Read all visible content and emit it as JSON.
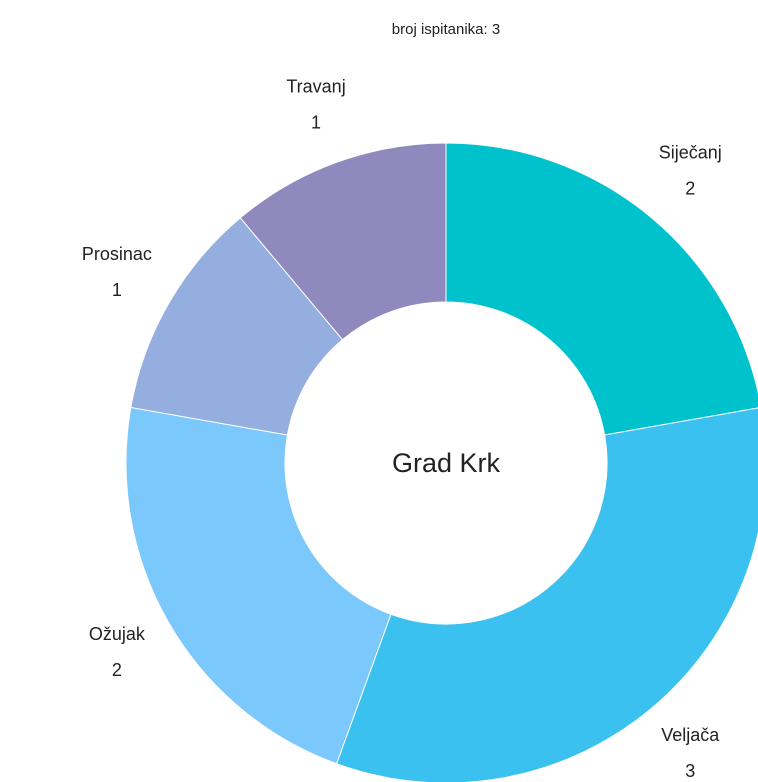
{
  "chart_data": {
    "type": "pie",
    "subtitle": "broj ispitanika: 3",
    "center_label": "Grad Krk",
    "categories": [
      "Siječanj",
      "Veljača",
      "Ožujak",
      "Prosinac",
      "Travanj"
    ],
    "values": [
      2,
      3,
      2,
      1,
      1
    ],
    "colors": [
      "#00c2cc",
      "#3bc1ef",
      "#7bc8fd",
      "#95aee0",
      "#8f89bd"
    ],
    "donut": true
  }
}
